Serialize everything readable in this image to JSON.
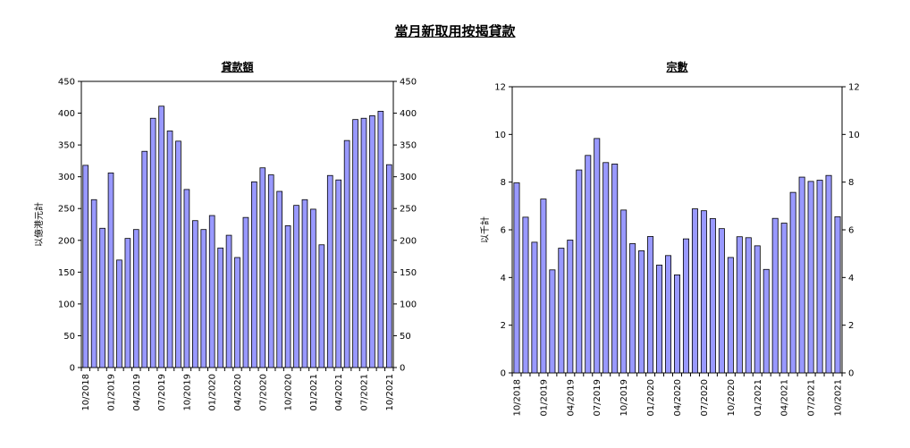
{
  "page": {
    "title": "當月新取用按揭貸款"
  },
  "chart_data": [
    {
      "type": "bar",
      "title": "貸款額",
      "ylabel": "以億港元計",
      "ylim": [
        0,
        450
      ],
      "yticks": [
        0,
        50,
        100,
        150,
        200,
        250,
        300,
        350,
        400,
        450
      ],
      "yticks_right": true,
      "x_tick_labels": [
        "10/2018",
        "01/2019",
        "04/2019",
        "07/2019",
        "10/2019",
        "01/2020",
        "04/2020",
        "07/2020",
        "10/2020",
        "01/2021",
        "04/2021",
        "07/2021",
        "10/2021"
      ],
      "bar_color": "#9999FF",
      "categories": [
        "10/2018",
        "11/2018",
        "12/2018",
        "01/2019",
        "02/2019",
        "03/2019",
        "04/2019",
        "05/2019",
        "06/2019",
        "07/2019",
        "08/2019",
        "09/2019",
        "10/2019",
        "11/2019",
        "12/2019",
        "01/2020",
        "02/2020",
        "03/2020",
        "04/2020",
        "05/2020",
        "06/2020",
        "07/2020",
        "08/2020",
        "09/2020",
        "10/2020",
        "11/2020",
        "12/2020",
        "01/2021",
        "02/2021",
        "03/2021",
        "04/2021",
        "05/2021",
        "06/2021",
        "07/2021",
        "08/2021",
        "09/2021",
        "10/2021"
      ],
      "values": [
        318,
        264,
        219,
        306,
        169,
        203,
        217,
        340,
        392,
        411,
        372,
        356,
        280,
        231,
        217,
        239,
        188,
        208,
        173,
        236,
        292,
        314,
        303,
        277,
        223,
        255,
        264,
        249,
        193,
        302,
        295,
        357,
        390,
        392,
        396,
        403,
        319
      ]
    },
    {
      "type": "bar",
      "title": "宗數",
      "ylabel": "以千計",
      "ylim": [
        0,
        12
      ],
      "yticks": [
        0,
        2,
        4,
        6,
        8,
        10,
        12
      ],
      "yticks_right": true,
      "x_tick_labels": [
        "10/2018",
        "01/2019",
        "04/2019",
        "07/2019",
        "10/2019",
        "01/2020",
        "04/2020",
        "07/2020",
        "10/2020",
        "01/2021",
        "04/2021",
        "07/2021",
        "10/2021"
      ],
      "bar_color": "#9999FF",
      "categories": [
        "10/2018",
        "11/2018",
        "12/2018",
        "01/2019",
        "02/2019",
        "03/2019",
        "04/2019",
        "05/2019",
        "06/2019",
        "07/2019",
        "08/2019",
        "09/2019",
        "10/2019",
        "11/2019",
        "12/2019",
        "01/2020",
        "02/2020",
        "03/2020",
        "04/2020",
        "05/2020",
        "06/2020",
        "07/2020",
        "08/2020",
        "09/2020",
        "10/2020",
        "11/2020",
        "12/2020",
        "01/2021",
        "02/2021",
        "03/2021",
        "04/2021",
        "05/2021",
        "06/2021",
        "07/2021",
        "08/2021",
        "09/2021",
        "10/2021"
      ],
      "values": [
        7.97,
        6.53,
        5.48,
        7.29,
        4.32,
        5.23,
        5.57,
        8.51,
        9.12,
        9.83,
        8.82,
        8.76,
        6.83,
        5.42,
        5.12,
        5.72,
        4.52,
        4.92,
        4.11,
        5.62,
        6.88,
        6.8,
        6.47,
        6.05,
        4.84,
        5.71,
        5.67,
        5.33,
        4.34,
        6.48,
        6.28,
        7.57,
        8.21,
        8.03,
        8.08,
        8.28,
        6.55
      ]
    }
  ]
}
